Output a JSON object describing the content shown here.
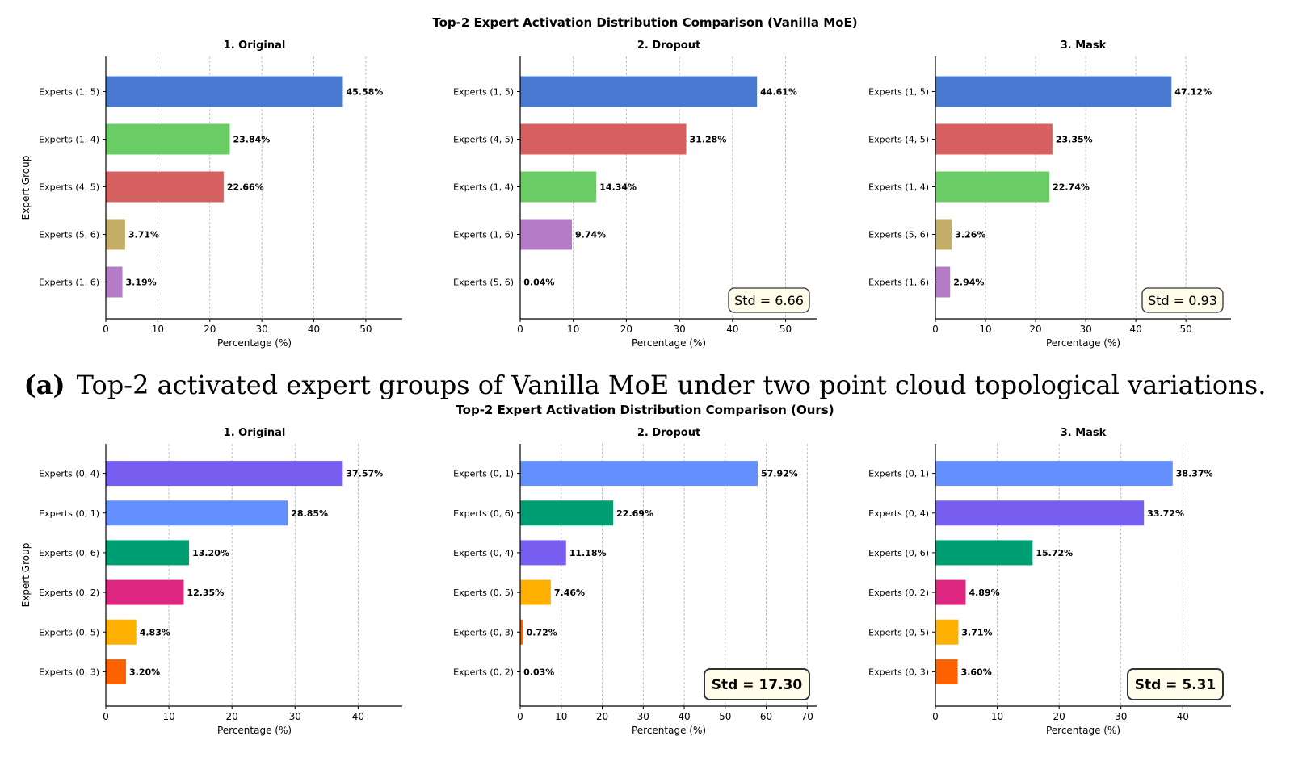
{
  "caption": {
    "label": "(a)",
    "text": "Top-2 activated expert groups of Vanilla MoE under two point cloud topological variations."
  },
  "colors": {
    "grid": "#b0b0b0",
    "box_fill": "#fffdea",
    "box_edge": "#333333"
  },
  "rows": [
    {
      "title": "Top-2 Expert Activation Distribution Comparison (Vanilla MoE)",
      "ylabel": "Expert Group",
      "chart_data": [
        {
          "type": "bar",
          "orientation": "horizontal",
          "title": "1. Original",
          "xlabel": "Percentage (%)",
          "ylabel": "Expert Group",
          "xlim": [
            0,
            57
          ],
          "xticks": [
            0,
            10,
            20,
            30,
            40,
            50
          ],
          "categories": [
            "Experts (1, 5)",
            "Experts (1, 4)",
            "Experts (4, 5)",
            "Experts (5, 6)",
            "Experts (1, 6)"
          ],
          "values": [
            45.58,
            23.84,
            22.66,
            3.71,
            3.19
          ],
          "value_labels": [
            "45.58%",
            "23.84%",
            "22.66%",
            "3.71%",
            "3.19%"
          ],
          "colors": [
            "#4878d0",
            "#6acc64",
            "#d65f5f",
            "#c4ad66",
            "#b47cc7"
          ],
          "annotation": "",
          "grid": "x"
        },
        {
          "type": "bar",
          "orientation": "horizontal",
          "title": "2. Dropout",
          "xlabel": "Percentage (%)",
          "xlim": [
            0,
            56
          ],
          "xticks": [
            0,
            10,
            20,
            30,
            40,
            50
          ],
          "categories": [
            "Experts (1, 5)",
            "Experts (4, 5)",
            "Experts (1, 4)",
            "Experts (1, 6)",
            "Experts (5, 6)"
          ],
          "values": [
            44.61,
            31.28,
            14.34,
            9.74,
            0.04
          ],
          "value_labels": [
            "44.61%",
            "31.28%",
            "14.34%",
            "9.74%",
            "0.04%"
          ],
          "colors": [
            "#4878d0",
            "#d65f5f",
            "#6acc64",
            "#b47cc7",
            "#c4ad66"
          ],
          "annotation": "Std = 6.66",
          "annotation_bold": false,
          "grid": "x"
        },
        {
          "type": "bar",
          "orientation": "horizontal",
          "title": "3. Mask",
          "xlabel": "Percentage (%)",
          "xlim": [
            0,
            59
          ],
          "xticks": [
            0,
            10,
            20,
            30,
            40,
            50
          ],
          "categories": [
            "Experts (1, 5)",
            "Experts (4, 5)",
            "Experts (1, 4)",
            "Experts (5, 6)",
            "Experts (1, 6)"
          ],
          "values": [
            47.12,
            23.35,
            22.74,
            3.26,
            2.94
          ],
          "value_labels": [
            "47.12%",
            "23.35%",
            "22.74%",
            "3.26%",
            "2.94%"
          ],
          "colors": [
            "#4878d0",
            "#d65f5f",
            "#6acc64",
            "#c4ad66",
            "#b47cc7"
          ],
          "annotation": "Std = 0.93",
          "annotation_bold": false,
          "grid": "x"
        }
      ]
    },
    {
      "title": "Top-2 Expert Activation Distribution Comparison (Ours)",
      "ylabel": "Expert Group",
      "chart_data": [
        {
          "type": "bar",
          "orientation": "horizontal",
          "title": "1. Original",
          "xlabel": "Percentage (%)",
          "ylabel": "Expert Group",
          "xlim": [
            0,
            47
          ],
          "xticks": [
            0,
            10,
            20,
            30,
            40
          ],
          "categories": [
            "Experts (0, 4)",
            "Experts (0, 1)",
            "Experts (0, 6)",
            "Experts (0, 2)",
            "Experts (0, 5)",
            "Experts (0, 3)"
          ],
          "values": [
            37.57,
            28.85,
            13.2,
            12.35,
            4.83,
            3.2
          ],
          "value_labels": [
            "37.57%",
            "28.85%",
            "13.20%",
            "12.35%",
            "4.83%",
            "3.20%"
          ],
          "colors": [
            "#785ef0",
            "#648fff",
            "#009e73",
            "#dc267f",
            "#ffb000",
            "#fe6100"
          ],
          "annotation": "",
          "grid": "x"
        },
        {
          "type": "bar",
          "orientation": "horizontal",
          "title": "2. Dropout",
          "xlabel": "Percentage (%)",
          "xlim": [
            0,
            72.5
          ],
          "xticks": [
            0,
            10,
            20,
            30,
            40,
            50,
            60,
            70
          ],
          "categories": [
            "Experts (0, 1)",
            "Experts (0, 6)",
            "Experts (0, 4)",
            "Experts (0, 5)",
            "Experts (0, 3)",
            "Experts (0, 2)"
          ],
          "values": [
            57.92,
            22.69,
            11.18,
            7.46,
            0.72,
            0.03
          ],
          "value_labels": [
            "57.92%",
            "22.69%",
            "11.18%",
            "7.46%",
            "0.72%",
            "0.03%"
          ],
          "colors": [
            "#648fff",
            "#009e73",
            "#785ef0",
            "#ffb000",
            "#fe6100",
            "#dc267f"
          ],
          "annotation": "Std = 17.30",
          "annotation_bold": true,
          "grid": "x"
        },
        {
          "type": "bar",
          "orientation": "horizontal",
          "title": "3. Mask",
          "xlabel": "Percentage (%)",
          "xlim": [
            0,
            47.8
          ],
          "xticks": [
            0,
            10,
            20,
            30,
            40
          ],
          "categories": [
            "Experts (0, 1)",
            "Experts (0, 4)",
            "Experts (0, 6)",
            "Experts (0, 2)",
            "Experts (0, 5)",
            "Experts (0, 3)"
          ],
          "values": [
            38.37,
            33.72,
            15.72,
            4.89,
            3.71,
            3.6
          ],
          "value_labels": [
            "38.37%",
            "33.72%",
            "15.72%",
            "4.89%",
            "3.71%",
            "3.60%"
          ],
          "colors": [
            "#648fff",
            "#785ef0",
            "#009e73",
            "#dc267f",
            "#ffb000",
            "#fe6100"
          ],
          "annotation": "Std = 5.31",
          "annotation_bold": true,
          "grid": "x"
        }
      ]
    }
  ]
}
